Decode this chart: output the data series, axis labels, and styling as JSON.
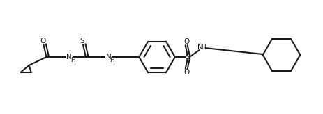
{
  "bg_color": "#ffffff",
  "line_color": "#1a1a1a",
  "line_width": 1.5,
  "font_size": 7.5,
  "figsize": [
    4.64,
    1.64
  ],
  "dpi": 100,
  "xlim": [
    0,
    46.4
  ],
  "ylim": [
    0,
    16.4
  ]
}
